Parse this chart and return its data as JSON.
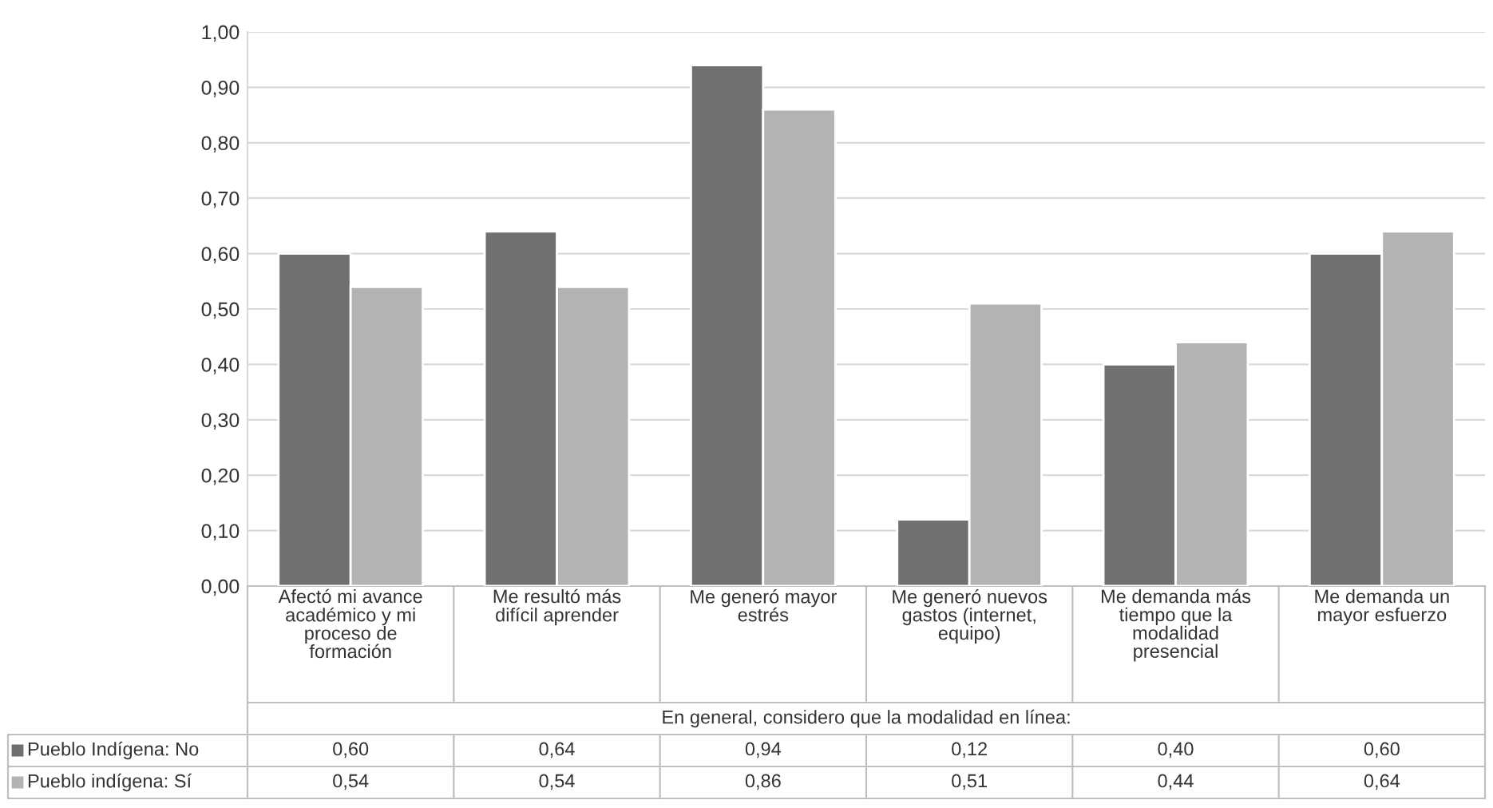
{
  "chart_data": {
    "type": "bar",
    "categories": [
      "Afectó mi avance\nacadémico y mi\nproceso de\nformación",
      "Me resultó más\ndifícil aprender",
      "Me generó mayor\nestrés",
      "Me generó nuevos\ngastos (internet,\nequipo)",
      "Me demanda más\ntiempo que la\nmodalidad\npresencial",
      "Me demanda un\nmayor esfuerzo"
    ],
    "xlabel": "En general, considero que la modalidad en línea:",
    "series": [
      {
        "name": "Pueblo Indígena: No",
        "color": "#707070",
        "values": [
          0.6,
          0.64,
          0.94,
          0.12,
          0.4,
          0.6
        ],
        "value_labels": [
          "0,60",
          "0,64",
          "0,94",
          "0,12",
          "0,40",
          "0,60"
        ]
      },
      {
        "name": "Pueblo indígena: Sí",
        "color": "#b3b3b3",
        "values": [
          0.54,
          0.54,
          0.86,
          0.51,
          0.44,
          0.64
        ],
        "value_labels": [
          "0,54",
          "0,54",
          "0,86",
          "0,51",
          "0,44",
          "0,64"
        ]
      }
    ],
    "ylim": [
      0,
      1.0
    ],
    "yticks": [
      {
        "value": 0,
        "label": "0,00"
      },
      {
        "value": 0.1,
        "label": "0,10"
      },
      {
        "value": 0.2,
        "label": "0,20"
      },
      {
        "value": 0.3,
        "label": "0,30"
      },
      {
        "value": 0.4,
        "label": "0,40"
      },
      {
        "value": 0.5,
        "label": "0,50"
      },
      {
        "value": 0.6,
        "label": "0,60"
      },
      {
        "value": 0.7,
        "label": "0,70"
      },
      {
        "value": 0.8,
        "label": "0,80"
      },
      {
        "value": 0.9,
        "label": "0,90"
      },
      {
        "value": 1.0,
        "label": "1,00"
      }
    ],
    "grid": "y",
    "legend": "bottom"
  }
}
